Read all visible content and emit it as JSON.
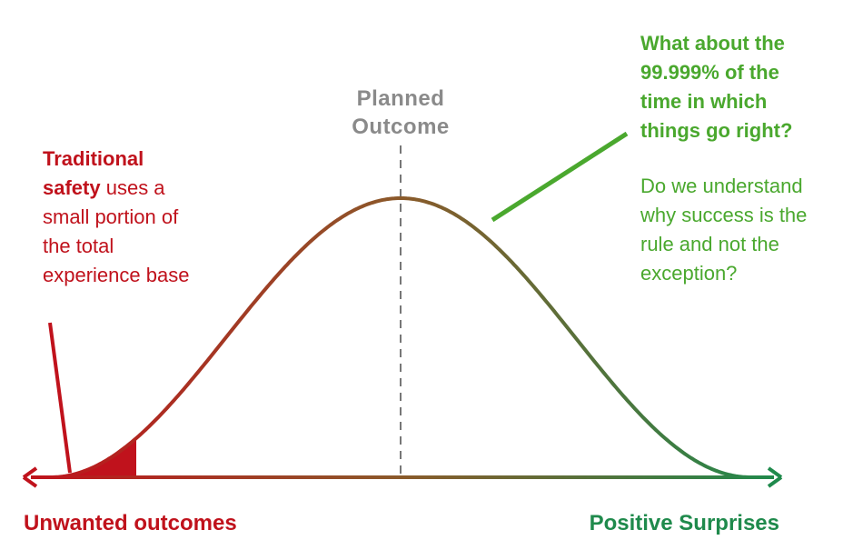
{
  "planned_outcome": [
    "Planned",
    "Outcome"
  ],
  "left_note": {
    "bold": [
      "Traditional",
      "safety"
    ],
    "text": [
      "uses a",
      "small portion of",
      "the total",
      "experience base"
    ]
  },
  "right_note": {
    "bold": [
      "What about the",
      "99.999% of the",
      "time in which",
      "things go right?"
    ],
    "text": [
      "Do we understand",
      "why success is the",
      "rule and not the",
      "exception?"
    ]
  },
  "axis_labels": {
    "left": "Unwanted outcomes",
    "right": "Positive Surprises"
  }
}
